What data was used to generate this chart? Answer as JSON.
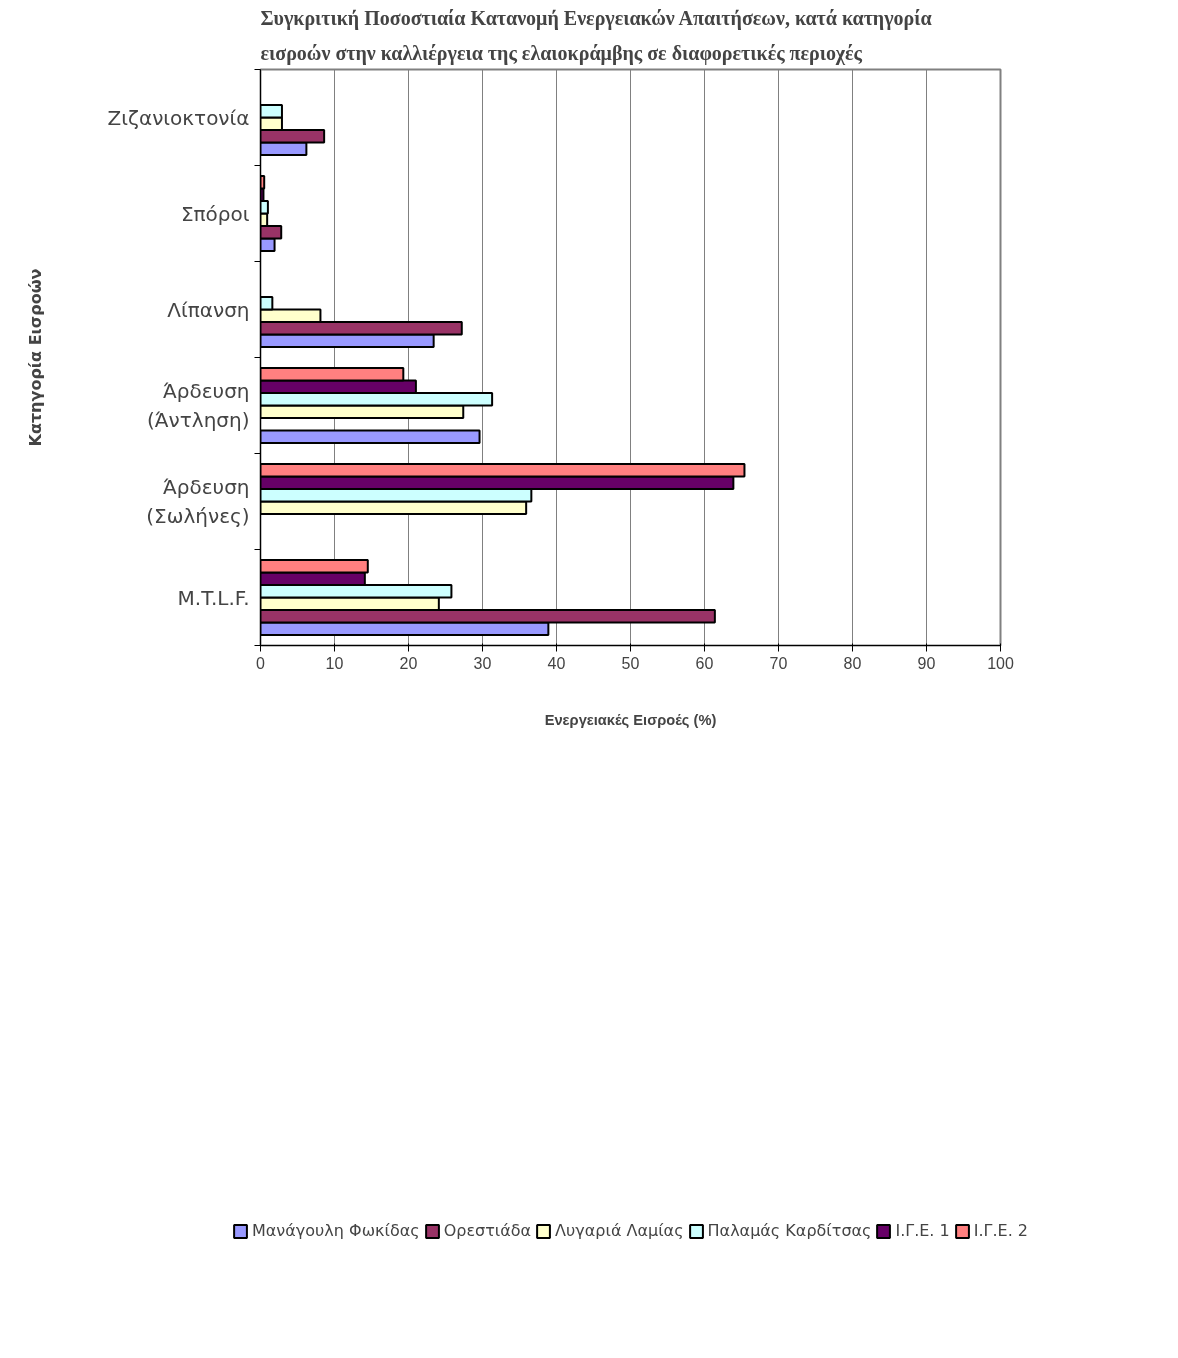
{
  "chart_data": {
    "type": "bar",
    "orientation": "horizontal",
    "title": "Συγκριτική Ποσοστιαία Κατανομή Ενεργειακών Απαιτήσεων, κατά κατηγορία εισροών στην καλλιέργεια της ελαιοκράμβης σε διαφορετικές περιοχές",
    "xlabel": "Ενεργειακές Εισροές (%)",
    "ylabel": "Κατηγορία Εισροών",
    "categories": [
      "Ζιζανιοκτονία",
      "Σπόροι",
      "Λίπανση",
      "Άρδευση (Άντληση)",
      "Άρδευση (Σωλήνες)",
      "M.T.L.F."
    ],
    "series": [
      {
        "name": "Μανάγουλη Φωκίδας",
        "color": "#9999ff",
        "values": [
          6.2,
          1.9,
          23.4,
          29.6,
          null,
          38.9
        ]
      },
      {
        "name": "Ορεστιάδα",
        "color": "#993366",
        "values": [
          8.6,
          2.8,
          27.2,
          null,
          null,
          61.4
        ]
      },
      {
        "name": "Λυγαριά Λαμίας",
        "color": "#ffffcc",
        "values": [
          2.9,
          0.9,
          8.1,
          27.4,
          35.9,
          24.1
        ]
      },
      {
        "name": "Παλαμάς Καρδίτσας",
        "color": "#ccffff",
        "values": [
          2.9,
          1.0,
          1.6,
          31.3,
          36.6,
          25.8
        ]
      },
      {
        "name": "Ι.Γ.Ε. 1",
        "color": "#660066",
        "values": [
          null,
          0.4,
          null,
          21.0,
          63.9,
          14.1
        ]
      },
      {
        "name": "Ι.Γ.Ε. 2",
        "color": "#ff8080",
        "values": [
          null,
          0.5,
          null,
          19.3,
          65.4,
          14.5
        ]
      }
    ],
    "xlim": [
      0,
      100
    ],
    "xticks": [
      0,
      10,
      20,
      30,
      40,
      50,
      60,
      70,
      80,
      90,
      100
    ],
    "grid": "x",
    "legend": "bottom"
  }
}
